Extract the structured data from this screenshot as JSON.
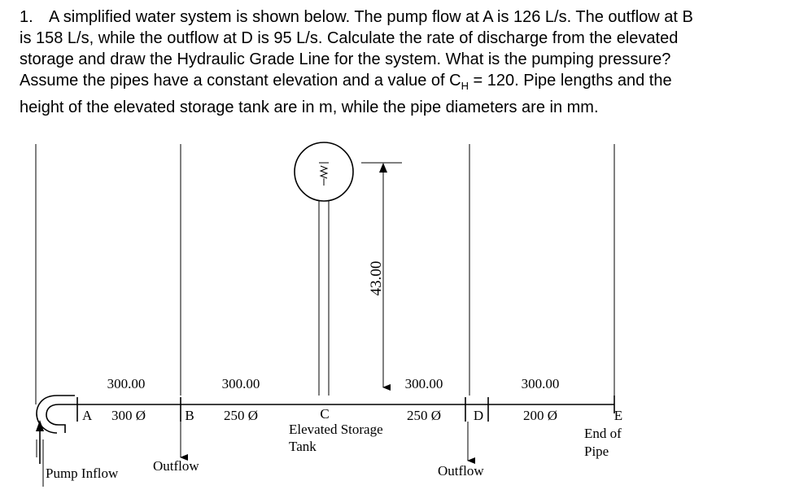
{
  "problem": {
    "number": "1.",
    "lines": [
      "A simplified water system is shown below. The pump flow at A is 126 L/s.  The outflow at B",
      "is 158 L/s, while the outflow at D is 95 L/s.  Calculate the rate of discharge from the elevated",
      "storage and draw the Hydraulic Grade Line for the system. What is the pumping pressure?",
      {
        "before": "Assume the pipes have a constant elevation and a value of C",
        "sub": "H",
        "after": " = 120. Pipe lengths and the"
      },
      "height of the elevated storage tank are in m, while the pipe diameters are in mm."
    ]
  },
  "diagram": {
    "lengths": [
      "300.00",
      "300.00",
      "300.00",
      "300.00"
    ],
    "diameters": [
      "300 Ø",
      "250 Ø",
      "250 Ø",
      "200 Ø"
    ],
    "nodes": [
      "A",
      "B",
      "C",
      "D",
      "E"
    ],
    "tank_label": [
      "Elevated Storage",
      "Tank"
    ],
    "end_label": [
      "End of",
      "Pipe"
    ],
    "height": "43.00",
    "outflow_b": "Outflow",
    "outflow_d": "Outflow",
    "pump_inflow": "Pump Inflow"
  }
}
